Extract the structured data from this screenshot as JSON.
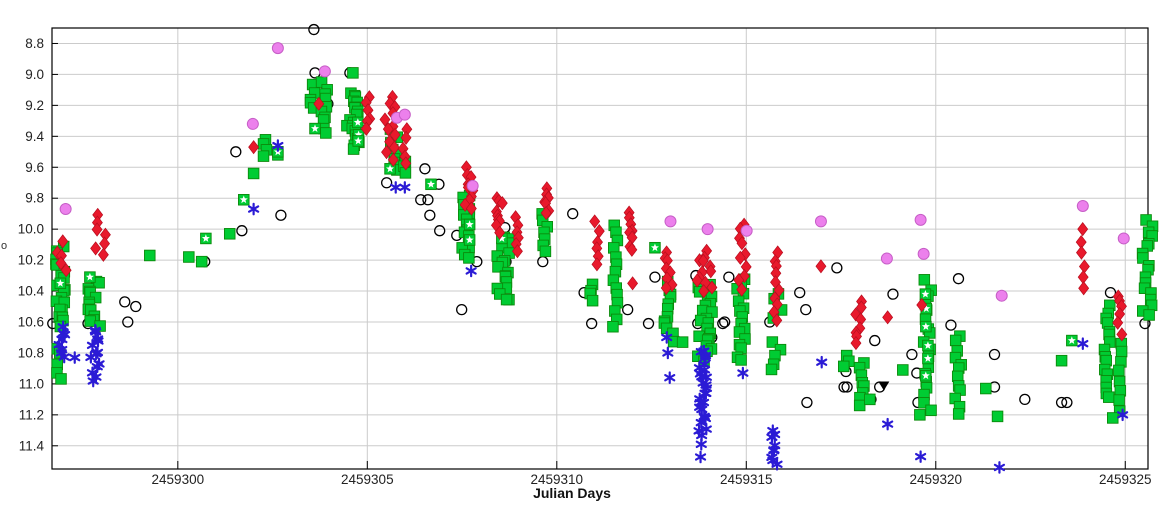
{
  "chart_data": {
    "type": "scatter",
    "title": "",
    "xlabel": "Julian Days",
    "ylabel_fragment": "o",
    "xlim": [
      2459296.68,
      2459325.6
    ],
    "ylim_top_bottom": [
      8.7,
      11.55
    ],
    "y_axis_inverted": true,
    "grid": true,
    "legend_position": "none",
    "x_ticks": [
      {
        "value": 2459300,
        "label": "2459300"
      },
      {
        "value": 2459305,
        "label": "2459305"
      },
      {
        "value": 2459310,
        "label": "2459310"
      },
      {
        "value": 2459315,
        "label": "2459315"
      },
      {
        "value": 2459320,
        "label": "2459320"
      },
      {
        "value": 2459325,
        "label": "2459325"
      }
    ],
    "y_ticks": [
      {
        "value": 8.8,
        "label": "8.8"
      },
      {
        "value": 9.0,
        "label": "9.0"
      },
      {
        "value": 9.2,
        "label": "9.2"
      },
      {
        "value": 9.4,
        "label": "9.4"
      },
      {
        "value": 9.6,
        "label": "9.6"
      },
      {
        "value": 9.8,
        "label": "9.8"
      },
      {
        "value": 10.0,
        "label": "10.0"
      },
      {
        "value": 10.2,
        "label": "10.2"
      },
      {
        "value": 10.4,
        "label": "10.4"
      },
      {
        "value": 10.6,
        "label": "10.6"
      },
      {
        "value": 10.8,
        "label": "10.8"
      },
      {
        "value": 11.0,
        "label": "11.0"
      },
      {
        "value": 11.2,
        "label": "11.2"
      },
      {
        "value": 11.4,
        "label": "11.4"
      }
    ],
    "series": [
      {
        "name": "open-black-circles",
        "marker": "circle-open",
        "color": "#000000",
        "points": [
          [
            2459296.7,
            10.61
          ],
          [
            2459297.63,
            10.61
          ],
          [
            2459298.6,
            10.47
          ],
          [
            2459298.89,
            10.5
          ],
          [
            2459298.68,
            10.6
          ],
          [
            2459300.71,
            10.21
          ],
          [
            2459301.53,
            9.5
          ],
          [
            2459301.69,
            10.01
          ],
          [
            2459302.72,
            9.91
          ],
          [
            2459303.59,
            8.71
          ],
          [
            2459303.62,
            8.99
          ],
          [
            2459303.67,
            9.09
          ],
          [
            2459303.96,
            9.19
          ],
          [
            2459304.54,
            8.99
          ],
          [
            2459305.51,
            9.7
          ],
          [
            2459306.41,
            9.81
          ],
          [
            2459306.52,
            9.61
          ],
          [
            2459306.6,
            9.81
          ],
          [
            2459306.65,
            9.91
          ],
          [
            2459306.89,
            9.71
          ],
          [
            2459306.91,
            10.01
          ],
          [
            2459307.36,
            10.04
          ],
          [
            2459307.49,
            10.52
          ],
          [
            2459307.89,
            10.21
          ],
          [
            2459308.6,
            10.09
          ],
          [
            2459308.63,
            9.99
          ],
          [
            2459308.66,
            10.21
          ],
          [
            2459309.63,
            10.21
          ],
          [
            2459310.42,
            9.9
          ],
          [
            2459310.72,
            10.41
          ],
          [
            2459310.92,
            10.61
          ],
          [
            2459311.87,
            10.52
          ],
          [
            2459312.42,
            10.61
          ],
          [
            2459312.59,
            10.31
          ],
          [
            2459313.67,
            10.3
          ],
          [
            2459313.72,
            10.61
          ],
          [
            2459314.09,
            10.7
          ],
          [
            2459314.38,
            10.61
          ],
          [
            2459314.43,
            10.6
          ],
          [
            2459314.54,
            10.31
          ],
          [
            2459315.62,
            10.6
          ],
          [
            2459316.41,
            10.41
          ],
          [
            2459316.57,
            10.52
          ],
          [
            2459316.6,
            11.12
          ],
          [
            2459317.39,
            10.25
          ],
          [
            2459317.58,
            11.02
          ],
          [
            2459317.66,
            11.02
          ],
          [
            2459317.63,
            10.92
          ],
          [
            2459318.29,
            11.1
          ],
          [
            2459318.39,
            10.72
          ],
          [
            2459318.52,
            11.02
          ],
          [
            2459318.87,
            10.42
          ],
          [
            2459319.37,
            10.81
          ],
          [
            2459319.5,
            10.93
          ],
          [
            2459319.53,
            11.12
          ],
          [
            2459320.4,
            10.62
          ],
          [
            2459320.6,
            10.32
          ],
          [
            2459321.55,
            10.81
          ],
          [
            2459321.55,
            11.02
          ],
          [
            2459322.35,
            11.1
          ],
          [
            2459323.32,
            11.12
          ],
          [
            2459323.46,
            11.12
          ],
          [
            2459324.61,
            10.41
          ],
          [
            2459325.52,
            10.61
          ]
        ],
        "clusters": []
      },
      {
        "name": "green-filled-squares",
        "marker": "square",
        "color": "#00CC33",
        "edge_color": "#0B8A0B",
        "points": [
          [
            2459299.26,
            10.17
          ],
          [
            2459300.29,
            10.18
          ],
          [
            2459300.63,
            10.21
          ],
          [
            2459301.37,
            10.03
          ],
          [
            2459302.0,
            9.64
          ],
          [
            2459302.64,
            9.52
          ],
          [
            2459304.62,
            8.99
          ],
          [
            2459313.32,
            10.73
          ],
          [
            2459318.26,
            11.1
          ],
          [
            2459319.13,
            10.91
          ],
          [
            2459319.58,
            11.2
          ],
          [
            2459321.32,
            11.03
          ],
          [
            2459321.63,
            11.21
          ],
          [
            2459323.32,
            10.85
          ],
          [
            2459324.67,
            11.22
          ]
        ],
        "clusters": [
          [
            2459296.78,
            2459297.02,
            10.12,
            10.63,
            22
          ],
          [
            2459296.8,
            2459296.95,
            10.76,
            10.97,
            5
          ],
          [
            2459297.6,
            2459297.95,
            10.33,
            10.63,
            14
          ],
          [
            2459302.25,
            2459302.35,
            9.43,
            9.53,
            4
          ],
          [
            2459303.5,
            2459303.62,
            9.07,
            9.23,
            5
          ],
          [
            2459303.77,
            2459303.96,
            9.06,
            9.38,
            10
          ],
          [
            2459304.46,
            2459304.78,
            9.12,
            9.47,
            20
          ],
          [
            2459305.6,
            2459305.9,
            9.36,
            9.62,
            8
          ],
          [
            2459305.95,
            2459306.02,
            9.55,
            9.63,
            3
          ],
          [
            2459307.5,
            2459307.72,
            9.78,
            10.19,
            16
          ],
          [
            2459308.4,
            2459308.75,
            10.04,
            10.47,
            18
          ],
          [
            2459309.6,
            2459309.75,
            9.91,
            10.14,
            7
          ],
          [
            2459310.8,
            2459311.0,
            10.35,
            10.47,
            4
          ],
          [
            2459311.48,
            2459311.62,
            9.97,
            10.62,
            14
          ],
          [
            2459312.8,
            2459313.1,
            10.35,
            10.72,
            12
          ],
          [
            2459313.72,
            2459314.1,
            10.35,
            10.85,
            22
          ],
          [
            2459314.75,
            2459314.98,
            10.32,
            10.85,
            16
          ],
          [
            2459315.7,
            2459315.95,
            10.41,
            10.57,
            4
          ],
          [
            2459315.6,
            2459316.0,
            10.74,
            10.92,
            5
          ],
          [
            2459317.55,
            2459317.75,
            10.81,
            10.89,
            3
          ],
          [
            2459317.95,
            2459318.15,
            10.86,
            11.14,
            8
          ],
          [
            2459319.68,
            2459319.88,
            10.34,
            11.18,
            18
          ],
          [
            2459320.5,
            2459320.7,
            10.68,
            11.19,
            12
          ],
          [
            2459324.4,
            2459324.6,
            10.49,
            11.1,
            16
          ],
          [
            2459324.78,
            2459324.94,
            10.74,
            11.17,
            8
          ],
          [
            2459325.45,
            2459325.72,
            9.94,
            10.55,
            18
          ]
        ]
      },
      {
        "name": "green-squares-with-white-star",
        "marker": "square-star",
        "color": "#00CC33",
        "edge_color": "#0B8A0B",
        "star_color": "#FFFFFF",
        "points": [
          [
            2459296.9,
            10.35
          ],
          [
            2459297.68,
            10.31
          ],
          [
            2459300.74,
            10.06
          ],
          [
            2459301.74,
            9.81
          ],
          [
            2459302.64,
            9.5
          ],
          [
            2459303.62,
            9.35
          ],
          [
            2459304.75,
            9.31
          ],
          [
            2459304.77,
            9.39
          ],
          [
            2459304.76,
            9.43
          ],
          [
            2459305.6,
            9.61
          ],
          [
            2459306.68,
            9.71
          ],
          [
            2459307.7,
            9.97
          ],
          [
            2459307.7,
            10.07
          ],
          [
            2459308.55,
            10.06
          ],
          [
            2459312.59,
            10.12
          ],
          [
            2459323.59,
            10.72
          ]
        ],
        "clusters": [
          [
            2459319.72,
            2459319.8,
            10.42,
            10.95,
            6
          ]
        ]
      },
      {
        "name": "red-diamonds",
        "marker": "diamond",
        "color": "#E8192C",
        "edge_color": "#B80E1F",
        "points": [
          [
            2459302.0,
            9.47
          ],
          [
            2459303.72,
            9.19
          ],
          [
            2459311.0,
            9.95
          ],
          [
            2459312.0,
            10.35
          ],
          [
            2459316.97,
            10.24
          ],
          [
            2459318.73,
            10.57
          ],
          [
            2459319.63,
            10.49
          ],
          [
            2459324.91,
            10.68
          ]
        ],
        "clusters": [
          [
            2459296.8,
            2459297.1,
            10.09,
            10.28,
            5
          ],
          [
            2459297.8,
            2459298.1,
            9.92,
            10.17,
            7
          ],
          [
            2459304.9,
            2459305.1,
            9.14,
            9.36,
            6
          ],
          [
            2459305.4,
            2459305.75,
            9.15,
            9.55,
            12
          ],
          [
            2459305.94,
            2459306.06,
            9.36,
            9.59,
            5
          ],
          [
            2459307.55,
            2459307.8,
            9.61,
            9.88,
            10
          ],
          [
            2459308.4,
            2459308.6,
            9.79,
            10.01,
            9
          ],
          [
            2459308.9,
            2459309.1,
            9.92,
            10.14,
            6
          ],
          [
            2459309.65,
            2459309.82,
            9.74,
            9.9,
            7
          ],
          [
            2459311.05,
            2459311.14,
            10.02,
            10.23,
            5
          ],
          [
            2459311.9,
            2459312.05,
            9.89,
            10.14,
            8
          ],
          [
            2459312.85,
            2459313.05,
            10.14,
            10.39,
            8
          ],
          [
            2459313.7,
            2459314.1,
            10.15,
            10.4,
            12
          ],
          [
            2459314.8,
            2459315.0,
            9.96,
            10.39,
            10
          ],
          [
            2459315.72,
            2459315.9,
            10.15,
            10.59,
            10
          ],
          [
            2459317.8,
            2459318.1,
            10.48,
            10.74,
            8
          ],
          [
            2459323.82,
            2459323.94,
            9.99,
            10.39,
            6
          ],
          [
            2459324.8,
            2459325.0,
            10.43,
            10.59,
            5
          ]
        ]
      },
      {
        "name": "violet-filled-circles",
        "marker": "circle-filled",
        "color": "#EC80EC",
        "edge_color": "#C65EC6",
        "points": [
          [
            2459297.04,
            9.87
          ],
          [
            2459301.98,
            9.32
          ],
          [
            2459302.64,
            8.83
          ],
          [
            2459303.88,
            8.98
          ],
          [
            2459305.78,
            9.28
          ],
          [
            2459305.99,
            9.26
          ],
          [
            2459307.78,
            9.72
          ],
          [
            2459313.0,
            9.95
          ],
          [
            2459313.98,
            10.0
          ],
          [
            2459315.01,
            10.01
          ],
          [
            2459316.97,
            9.95
          ],
          [
            2459318.71,
            10.19
          ],
          [
            2459319.6,
            9.94
          ],
          [
            2459319.68,
            10.16
          ],
          [
            2459321.74,
            10.43
          ],
          [
            2459323.88,
            9.85
          ],
          [
            2459324.96,
            10.06
          ]
        ],
        "clusters": []
      },
      {
        "name": "blue-asterisks",
        "marker": "asterisk",
        "color": "#2B1BD5",
        "points": [
          [
            2459297.28,
            10.83
          ],
          [
            2459302.0,
            9.87
          ],
          [
            2459302.64,
            9.46
          ],
          [
            2459305.75,
            9.73
          ],
          [
            2459305.99,
            9.73
          ],
          [
            2459307.74,
            10.27
          ],
          [
            2459312.9,
            10.7
          ],
          [
            2459312.93,
            10.8
          ],
          [
            2459312.98,
            10.96
          ],
          [
            2459314.91,
            10.93
          ],
          [
            2459316.99,
            10.86
          ],
          [
            2459318.73,
            11.26
          ],
          [
            2459319.6,
            11.47
          ],
          [
            2459321.68,
            11.54
          ],
          [
            2459323.88,
            10.74
          ],
          [
            2459324.93,
            11.2
          ]
        ],
        "clusters": [
          [
            2459296.85,
            2459297.05,
            10.64,
            10.83,
            8
          ],
          [
            2459297.7,
            2459297.95,
            10.65,
            10.97,
            13
          ],
          [
            2459313.75,
            2459313.95,
            10.78,
            11.3,
            26
          ],
          [
            2459313.78,
            2459313.88,
            11.32,
            11.46,
            3
          ],
          [
            2459315.67,
            2459315.82,
            11.3,
            11.53,
            9
          ]
        ]
      },
      {
        "name": "black-fainter-than-triangle",
        "marker": "triangle-down",
        "color": "#000000",
        "points": [
          [
            2459318.63,
            11.01
          ]
        ],
        "clusters": []
      }
    ]
  },
  "style_colors": {
    "background": "#FFFFFF",
    "grid_line": "#CBCBCB",
    "frame": "#000000",
    "tick_text": "#222222"
  }
}
